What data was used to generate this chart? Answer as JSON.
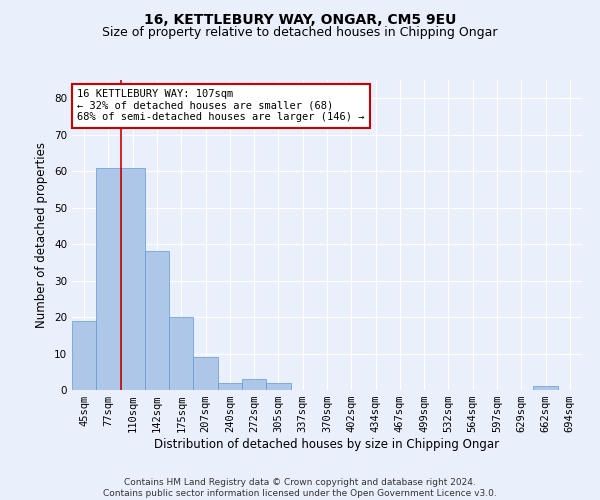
{
  "title": "16, KETTLEBURY WAY, ONGAR, CM5 9EU",
  "subtitle": "Size of property relative to detached houses in Chipping Ongar",
  "xlabel": "Distribution of detached houses by size in Chipping Ongar",
  "ylabel": "Number of detached properties",
  "categories": [
    "45sqm",
    "77sqm",
    "110sqm",
    "142sqm",
    "175sqm",
    "207sqm",
    "240sqm",
    "272sqm",
    "305sqm",
    "337sqm",
    "370sqm",
    "402sqm",
    "434sqm",
    "467sqm",
    "499sqm",
    "532sqm",
    "564sqm",
    "597sqm",
    "629sqm",
    "662sqm",
    "694sqm"
  ],
  "values": [
    19,
    61,
    61,
    38,
    20,
    9,
    2,
    3,
    2,
    0,
    0,
    0,
    0,
    0,
    0,
    0,
    0,
    0,
    0,
    1,
    0
  ],
  "bar_color": "#aec6e8",
  "bar_edge_color": "#5b9bd5",
  "property_line_x": 1.5,
  "property_line_color": "#cc0000",
  "ylim": [
    0,
    85
  ],
  "yticks": [
    0,
    10,
    20,
    30,
    40,
    50,
    60,
    70,
    80
  ],
  "annotation_text": "16 KETTLEBURY WAY: 107sqm\n← 32% of detached houses are smaller (68)\n68% of semi-detached houses are larger (146) →",
  "annotation_box_color": "#ffffff",
  "annotation_border_color": "#cc0000",
  "footer_text": "Contains HM Land Registry data © Crown copyright and database right 2024.\nContains public sector information licensed under the Open Government Licence v3.0.",
  "background_color": "#eaf0fb",
  "grid_color": "#ffffff",
  "title_fontsize": 10,
  "subtitle_fontsize": 9,
  "axis_label_fontsize": 8.5,
  "tick_fontsize": 7.5,
  "footer_fontsize": 6.5,
  "annotation_fontsize": 7.5
}
